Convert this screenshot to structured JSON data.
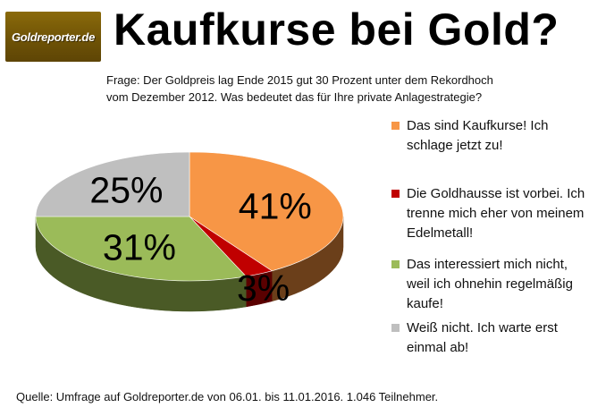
{
  "logo": {
    "text": "Goldreporter.de"
  },
  "title": "Kaufkurse bei Gold?",
  "question": "Frage: Der Goldpreis lag Ende 2015 gut 30 Prozent unter dem Rekordhoch vom Dezember 2012.  Was bedeutet das für Ihre private Anlagestrategie?",
  "chart_data": {
    "type": "pie",
    "labels": [
      "Das sind Kaufkurse! Ich schlage jetzt zu!",
      "Die Goldhausse ist vorbei. Ich trenne mich eher von meinem Edelmetall!",
      "Das interessiert mich nicht, weil ich ohnehin regelmäßig kaufe!",
      "Weiß nicht. Ich warte erst einmal ab!"
    ],
    "values": [
      41,
      3,
      31,
      25
    ],
    "value_labels": [
      "41%",
      "3%",
      "31%",
      "25%"
    ],
    "colors": [
      "#f79646",
      "#c00000",
      "#9bbb59",
      "#bfbfbf"
    ],
    "side_colors": [
      "#6b3f1a",
      "#5a0000",
      "#4a5a26",
      "#7f7f7f"
    ],
    "legend_position": "right",
    "style": "3d"
  },
  "legend": {
    "items": [
      {
        "label": "Das sind Kaufkurse! Ich schlage jetzt zu!",
        "color": "#f79646"
      },
      {
        "label": "Die Goldhausse ist vorbei. Ich trenne mich eher von meinem Edelmetall!",
        "color": "#c00000"
      },
      {
        "label": "Das interessiert mich nicht, weil ich ohnehin regelmäßig kaufe!",
        "color": "#9bbb59"
      },
      {
        "label": "Weiß nicht. Ich warte erst einmal ab!",
        "color": "#bfbfbf"
      }
    ]
  },
  "source": "Quelle: Umfrage auf Goldreporter.de  von 06.01. bis 11.01.2016.  1.046 Teilnehmer."
}
